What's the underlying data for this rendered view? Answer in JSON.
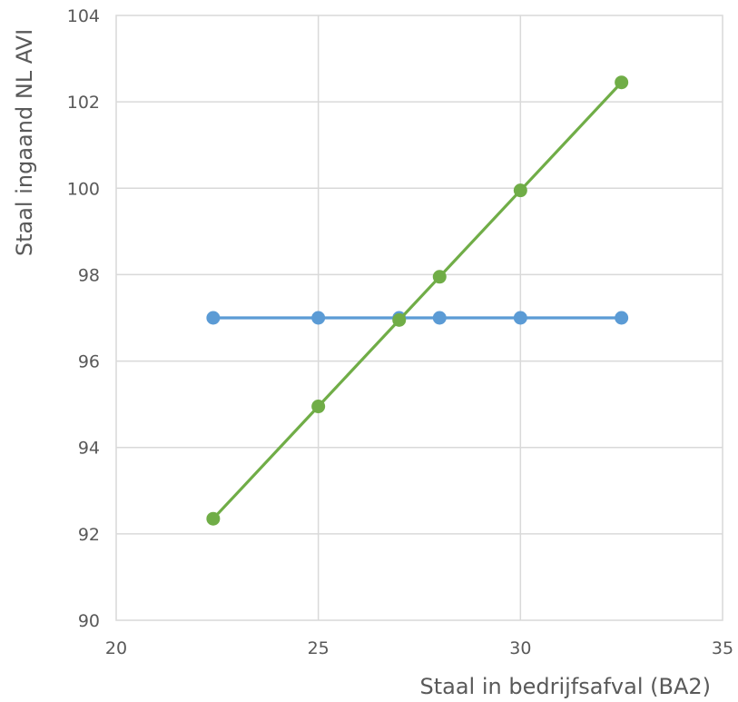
{
  "chart_data": {
    "type": "line",
    "title": "",
    "xlabel": "Staal in bedrijfsafval (BA2)",
    "ylabel": "Staal ingaand NL AVI",
    "xlim": [
      20,
      35
    ],
    "ylim": [
      90,
      104
    ],
    "xticks": [
      20,
      25,
      30,
      35
    ],
    "yticks": [
      90,
      92,
      94,
      96,
      98,
      100,
      102,
      104
    ],
    "grid": true,
    "legend": "none",
    "series": [
      {
        "color": "#5b9bd5",
        "points": [
          {
            "x": 22.4,
            "y": 97.0
          },
          {
            "x": 25.0,
            "y": 97.0
          },
          {
            "x": 27.0,
            "y": 97.0
          },
          {
            "x": 28.0,
            "y": 97.0
          },
          {
            "x": 30.0,
            "y": 97.0
          },
          {
            "x": 32.5,
            "y": 97.0
          }
        ]
      },
      {
        "color": "#70ad47",
        "points": [
          {
            "x": 22.4,
            "y": 92.35
          },
          {
            "x": 25.0,
            "y": 94.95
          },
          {
            "x": 27.0,
            "y": 96.95
          },
          {
            "x": 28.0,
            "y": 97.95
          },
          {
            "x": 30.0,
            "y": 99.95
          },
          {
            "x": 32.5,
            "y": 102.45
          }
        ]
      }
    ]
  }
}
